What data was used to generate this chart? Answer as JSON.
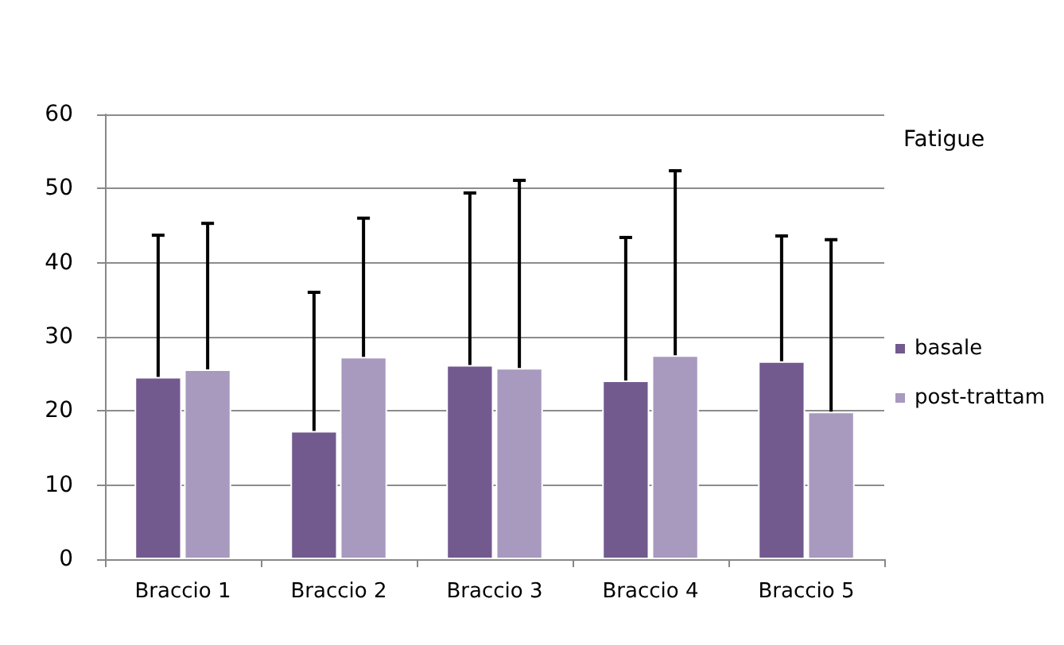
{
  "chart_data": {
    "type": "bar",
    "title": "Fatigue",
    "categories": [
      "Braccio 1",
      "Braccio 2",
      "Braccio 3",
      "Braccio 4",
      "Braccio 5"
    ],
    "series": [
      {
        "name": "basale",
        "color": "#725a8f",
        "values": [
          24.6,
          17.3,
          26.2,
          24.1,
          26.7
        ],
        "errors": [
          [
            24.6,
            43.7
          ],
          [
            17.3,
            36.0
          ],
          [
            26.2,
            49.4
          ],
          [
            24.1,
            43.4
          ],
          [
            26.7,
            43.6
          ]
        ]
      },
      {
        "name": "post-trattam",
        "color": "#a899bf",
        "values": [
          25.6,
          27.3,
          25.8,
          27.5,
          19.9
        ],
        "errors": [
          [
            25.6,
            45.3
          ],
          [
            27.3,
            46.0
          ],
          [
            25.8,
            51.1
          ],
          [
            27.5,
            52.4
          ],
          [
            19.9,
            43.1
          ]
        ]
      }
    ],
    "ylim": [
      0,
      60
    ],
    "yticks": [
      0,
      10,
      20,
      30,
      40,
      50,
      60
    ],
    "grid": "y",
    "legend": "right"
  }
}
